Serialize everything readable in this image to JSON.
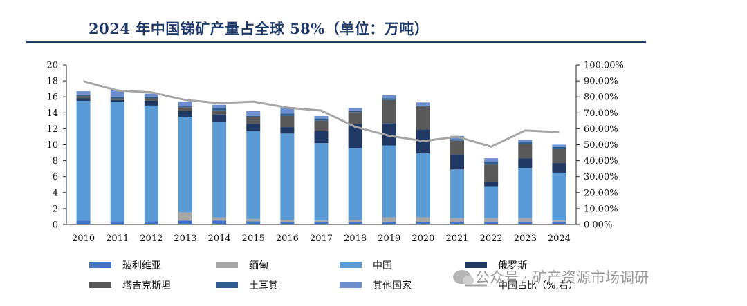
{
  "chart_data": {
    "type": "bar",
    "title": "2024 年中国锑矿产量占全球 58%（单位：万吨）",
    "categories": [
      "2010",
      "2011",
      "2012",
      "2013",
      "2014",
      "2015",
      "2016",
      "2017",
      "2018",
      "2019",
      "2020",
      "2021",
      "2022",
      "2023",
      "2024"
    ],
    "y_left": {
      "min": 0,
      "max": 20,
      "ticks": [
        "0",
        "2",
        "4",
        "6",
        "8",
        "10",
        "12",
        "14",
        "16",
        "18",
        "20"
      ]
    },
    "y_right": {
      "min": 0,
      "max": 100,
      "ticks": [
        "0.00%",
        "10.00%",
        "20.00%",
        "30.00%",
        "40.00%",
        "50.00%",
        "60.00%",
        "70.00%",
        "80.00%",
        "90.00%",
        "100.00%"
      ]
    },
    "series": [
      {
        "name": "玻利维亚",
        "color": "#4472c4",
        "values": [
          0.5,
          0.4,
          0.4,
          0.5,
          0.5,
          0.4,
          0.3,
          0.3,
          0.3,
          0.3,
          0.3,
          0.3,
          0.3,
          0.3,
          0.3
        ]
      },
      {
        "name": "缅甸",
        "color": "#a6a6a6",
        "values": [
          0.0,
          0.0,
          0.0,
          1.0,
          0.4,
          0.3,
          0.3,
          0.2,
          0.3,
          0.6,
          0.6,
          0.5,
          0.5,
          0.5,
          0.2
        ]
      },
      {
        "name": "中国",
        "color": "#5b9bd5",
        "values": [
          15.0,
          15.0,
          14.5,
          12.0,
          12.0,
          11.0,
          10.8,
          9.7,
          9.0,
          9.0,
          8.0,
          6.1,
          4.0,
          6.3,
          6.0
        ]
      },
      {
        "name": "俄罗斯",
        "color": "#203864",
        "values": [
          0.3,
          0.2,
          0.6,
          0.7,
          0.9,
          0.9,
          0.8,
          1.5,
          3.0,
          2.8,
          3.0,
          1.9,
          0.5,
          1.2,
          1.2
        ]
      },
      {
        "name": "塔吉克斯坦",
        "color": "#595959",
        "values": [
          0.3,
          0.2,
          0.3,
          0.5,
          0.5,
          0.9,
          1.4,
          1.3,
          1.5,
          2.9,
          2.9,
          1.7,
          2.2,
          1.8,
          1.8
        ]
      },
      {
        "name": "土耳其",
        "color": "#2e5d8e",
        "values": [
          0.2,
          0.2,
          0.2,
          0.1,
          0.3,
          0.1,
          0.3,
          0.2,
          0.2,
          0.2,
          0.1,
          0.2,
          0.3,
          0.2,
          0.2
        ]
      },
      {
        "name": "其他国家",
        "color": "#6d8fd0",
        "values": [
          0.4,
          0.8,
          0.4,
          0.6,
          0.4,
          0.6,
          0.8,
          0.4,
          0.3,
          0.4,
          0.4,
          0.4,
          0.5,
          0.3,
          0.3
        ]
      }
    ],
    "line": {
      "name": "中国占比（%,右）",
      "color": "#a6a6a6",
      "values": [
        89.8,
        84.0,
        82.8,
        78.0,
        76.0,
        77.0,
        73.2,
        71.4,
        61.2,
        55.6,
        52.3,
        55.0,
        48.8,
        58.9,
        57.9
      ]
    },
    "watermark": "公众号 · 矿产资源市场调研"
  }
}
